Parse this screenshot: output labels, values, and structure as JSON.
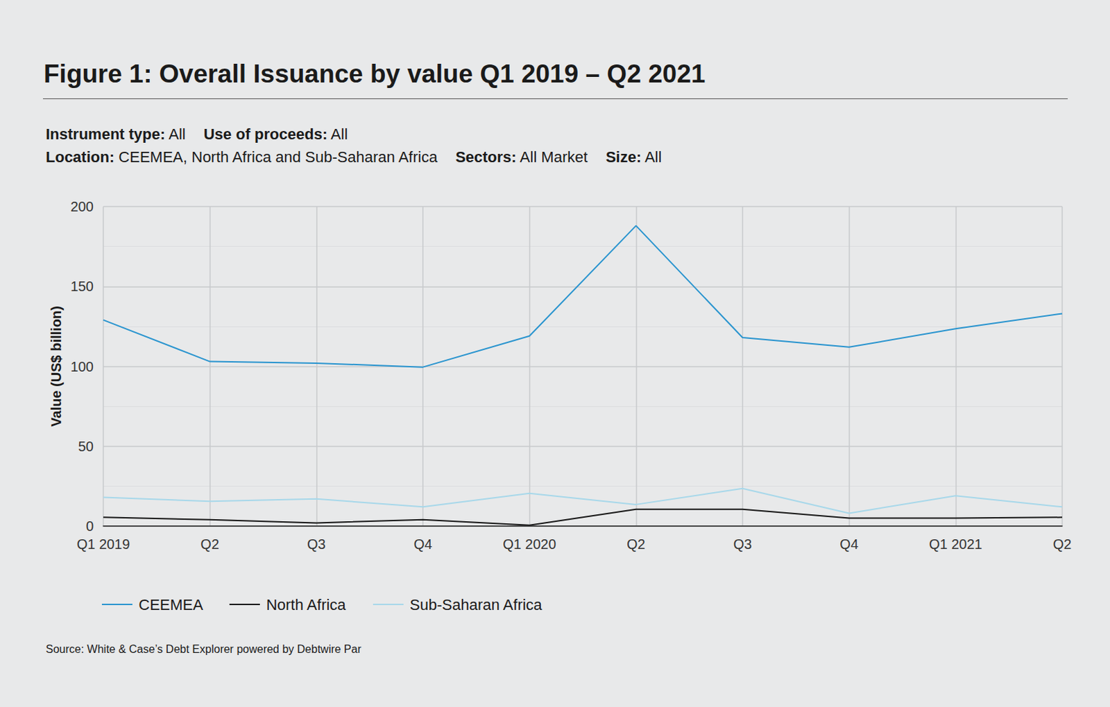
{
  "title": "Figure 1: Overall Issuance by value Q1 2019 – Q2 2021",
  "filters": [
    [
      {
        "label": "Instrument type:",
        "value": "All"
      },
      {
        "label": "Use of proceeds:",
        "value": "All"
      }
    ],
    [
      {
        "label": "Location:",
        "value": "CEEMEA, North Africa and Sub-Saharan Africa"
      },
      {
        "label": "Sectors:",
        "value": "All Market"
      },
      {
        "label": "Size:",
        "value": "All"
      }
    ]
  ],
  "source": "Source: White & Case’s Debt Explorer powered by Debtwire Par",
  "chart_data": {
    "type": "line",
    "y_label": "Value (US$ billion)",
    "categories": [
      "Q1 2019",
      "Q2",
      "Q3",
      "Q4",
      "Q1 2020",
      "Q2",
      "Q3",
      "Q4",
      "Q1 2021",
      "Q2"
    ],
    "series": [
      {
        "name": "CEEMEA",
        "color": "#2b95cf",
        "values": [
          129,
          103,
          102,
          99.5,
          119,
          188,
          118,
          112,
          123.5,
          133
        ]
      },
      {
        "name": "North Africa",
        "color": "#1a1a1a",
        "values": [
          5.5,
          4,
          2,
          4,
          0.5,
          10.5,
          10.5,
          5,
          5,
          5.5
        ]
      },
      {
        "name": "Sub-Saharan Africa",
        "color": "#a8d8ea",
        "values": [
          18,
          15.5,
          17,
          12,
          20.5,
          13.5,
          23.5,
          8,
          19,
          12
        ]
      }
    ],
    "ylim": [
      0,
      200
    ],
    "yticks": [
      0,
      50,
      100,
      150,
      200
    ],
    "grid": true,
    "legend": "lower left"
  }
}
